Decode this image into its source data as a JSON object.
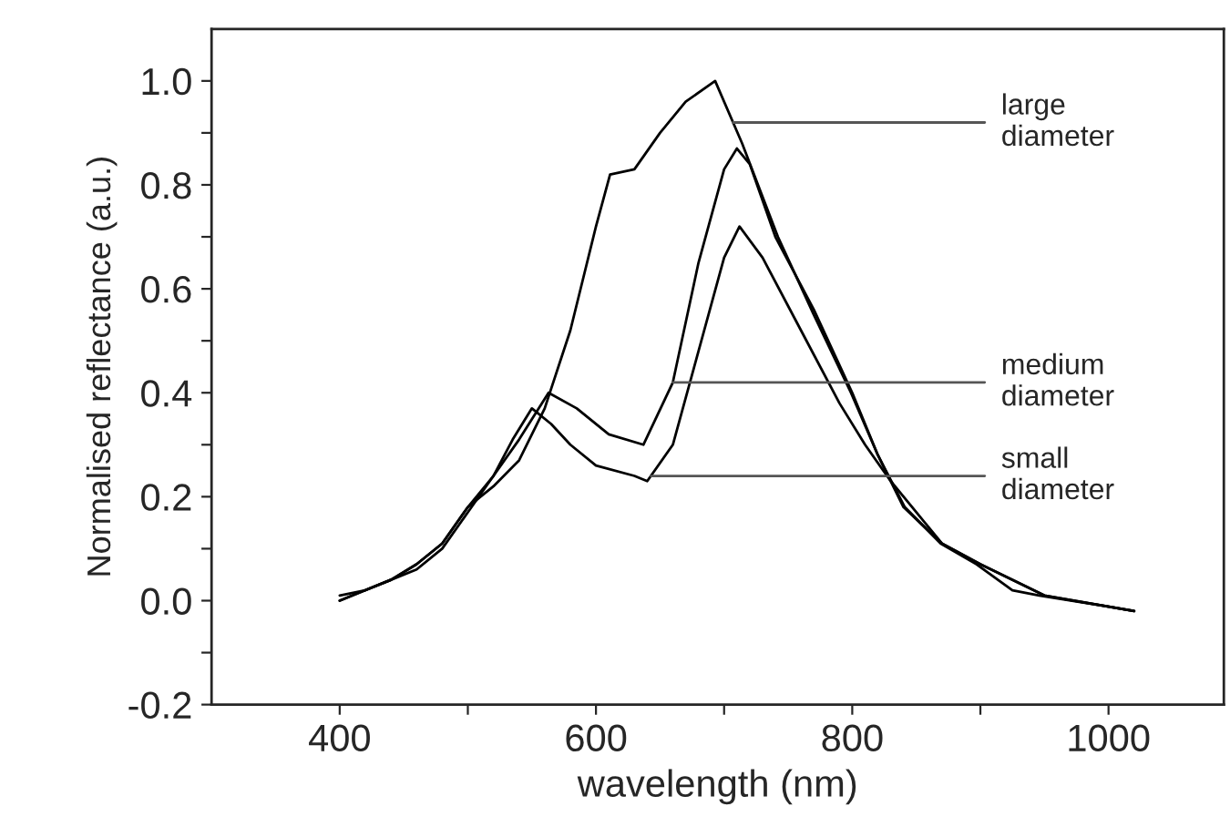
{
  "chart_data": {
    "type": "line",
    "xlabel": "wavelength (nm)",
    "ylabel": "Normalised reflectance (a.u.)",
    "xlim": [
      300,
      1090
    ],
    "ylim": [
      -0.2,
      1.1
    ],
    "xticks": [
      400,
      {
        "value": 500,
        "label": null
      },
      600,
      {
        "value": 700,
        "label": null
      },
      800,
      {
        "value": 900,
        "label": null
      },
      1000
    ],
    "yticks": [
      "-0.2",
      {
        "value": -0.1,
        "label": null
      },
      {
        "value": 0,
        "label": "0.0"
      },
      {
        "value": 0.1,
        "label": null
      },
      0.2,
      {
        "value": 0.3,
        "label": null
      },
      0.4,
      {
        "value": 0.5,
        "label": null
      },
      0.6,
      {
        "value": 0.7,
        "label": null
      },
      0.8,
      {
        "value": 0.9,
        "label": null
      },
      {
        "value": 1,
        "label": "1.0"
      }
    ],
    "grid": false,
    "legend": false,
    "marker": "none",
    "line_style": "solid",
    "series": [
      {
        "color": "#000000",
        "x": [
          400,
          420,
          440,
          460,
          480,
          500,
          520,
          540,
          560,
          580,
          600,
          611,
          630,
          650,
          670,
          693,
          714,
          742,
          770,
          799,
          820,
          841,
          869,
          897,
          925,
          946,
          996,
          1020
        ],
        "values": [
          0.0,
          0.02,
          0.04,
          0.07,
          0.11,
          0.18,
          0.22,
          0.27,
          0.37,
          0.52,
          0.72,
          0.82,
          0.83,
          0.9,
          0.96,
          1.0,
          0.88,
          0.7,
          0.55,
          0.4,
          0.28,
          0.18,
          0.11,
          0.07,
          0.02,
          0.01,
          -0.01,
          -0.02
        ]
      },
      {
        "color": "#000000",
        "x": [
          400,
          420,
          440,
          460,
          480,
          500,
          520,
          540,
          563,
          585,
          610,
          637,
          660,
          680,
          700,
          710,
          720,
          740,
          770,
          800,
          820,
          840,
          870,
          900,
          950,
          1020
        ],
        "values": [
          0.01,
          0.02,
          0.04,
          0.07,
          0.11,
          0.18,
          0.24,
          0.31,
          0.4,
          0.37,
          0.32,
          0.3,
          0.42,
          0.65,
          0.83,
          0.87,
          0.84,
          0.7,
          0.56,
          0.4,
          0.28,
          0.18,
          0.11,
          0.07,
          0.01,
          -0.02
        ]
      },
      {
        "color": "#000000",
        "x": [
          400,
          420,
          440,
          460,
          480,
          500,
          520,
          535,
          550,
          565,
          580,
          600,
          630,
          640,
          660,
          680,
          700,
          712,
          730,
          760,
          790,
          810,
          830,
          850,
          870,
          900,
          950,
          1020
        ],
        "values": [
          0.0,
          0.02,
          0.04,
          0.06,
          0.1,
          0.17,
          0.24,
          0.31,
          0.37,
          0.34,
          0.3,
          0.26,
          0.24,
          0.23,
          0.3,
          0.48,
          0.66,
          0.72,
          0.66,
          0.52,
          0.38,
          0.3,
          0.23,
          0.17,
          0.11,
          0.07,
          0.01,
          -0.02
        ]
      }
    ],
    "annotations": [
      {
        "text": "large\ndiameter",
        "x": 707,
        "y": 0.92
      },
      {
        "text": "medium\ndiameter",
        "x": 660,
        "y": 0.42
      },
      {
        "text": "small\ndiameter",
        "x": 643,
        "y": 0.24
      }
    ]
  }
}
